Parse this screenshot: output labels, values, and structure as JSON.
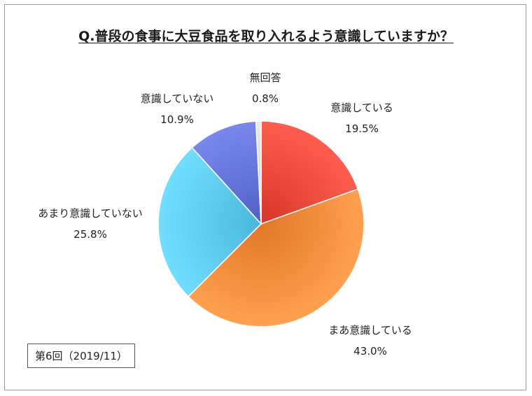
{
  "chart_data": {
    "type": "pie",
    "title": "Q.普段の食事に大豆食品を取り入れるよう意識していますか？",
    "slices": [
      {
        "label": "意識している",
        "value": 19.5,
        "value_label": "19.5%",
        "color": "#e8483a"
      },
      {
        "label": "まあ意識している",
        "value": 43.0,
        "value_label": "43.0%",
        "color": "#f28a3a"
      },
      {
        "label": "あまり意識していない",
        "value": 25.8,
        "value_label": "25.8%",
        "color": "#5cc8ee"
      },
      {
        "label": "意識していない",
        "value": 10.9,
        "value_label": "10.9%",
        "color": "#6272d6"
      },
      {
        "label": "無回答",
        "value": 0.8,
        "value_label": "0.8%",
        "color": "#d6d6d6"
      }
    ],
    "start": "12 o'clock",
    "direction": "clockwise"
  },
  "note": "第6回（2019/11）"
}
